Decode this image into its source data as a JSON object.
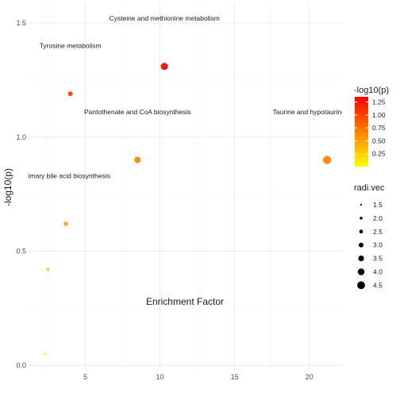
{
  "chart_data": {
    "type": "scatter",
    "xlabel": "Enrichment Factor",
    "ylabel": "-log10(p)",
    "xlim": [
      1.2,
      22.2
    ],
    "ylim": [
      -0.02,
      1.58
    ],
    "x_ticks": [
      5,
      10,
      15,
      20
    ],
    "y_ticks": [
      0.0,
      0.5,
      1.0,
      1.5
    ],
    "y_tick_labels": [
      "0.0",
      "0.5",
      "1.0",
      "1.5"
    ],
    "grid": true,
    "points": [
      {
        "x": 10.3,
        "y": 1.31,
        "size": 4.2,
        "color_value": 1.31,
        "color": "#f01c0c"
      },
      {
        "x": 4.0,
        "y": 1.19,
        "size": 3.0,
        "color_value": 1.19,
        "color": "#f24a16"
      },
      {
        "x": 8.5,
        "y": 0.9,
        "size": 3.8,
        "color_value": 0.9,
        "color": "#f98814"
      },
      {
        "x": 21.2,
        "y": 0.9,
        "size": 4.7,
        "color_value": 0.9,
        "color": "#f98814"
      },
      {
        "x": 3.7,
        "y": 0.62,
        "size": 2.8,
        "color_value": 0.62,
        "color": "#fba81c"
      },
      {
        "x": 2.5,
        "y": 0.42,
        "size": 2.0,
        "color_value": 0.42,
        "color": "#fcc20e"
      },
      {
        "x": 2.3,
        "y": 0.05,
        "size": 1.5,
        "color_value": 0.05,
        "color": "#ffe800"
      }
    ],
    "annotations": [
      {
        "text": "Cysteine and methionine metabolism",
        "x": 10.3,
        "y": 1.51
      },
      {
        "text": "Tyrosine metabolism",
        "x": 4.0,
        "y": 1.39
      },
      {
        "text": "Pantothenate and CoA biosynthesis",
        "x": 8.5,
        "y": 1.1
      },
      {
        "text": "Taurine and hypotaurine metabolism",
        "x": 21.2,
        "y": 1.1
      },
      {
        "text": "Primary bile acid biosynthesis",
        "x": 3.7,
        "y": 0.82
      }
    ],
    "color_legend": {
      "title": "-log10(p)",
      "min": 0.0,
      "max": 1.35,
      "low_color": "#ffff00",
      "high_color": "#ff0000",
      "breaks": [
        1.25,
        1.0,
        0.75,
        0.5,
        0.25
      ],
      "break_labels": [
        "1.25",
        "1.00",
        "0.75",
        "0.50",
        "0.25"
      ]
    },
    "size_legend": {
      "title": "radi.vec",
      "values": [
        1.5,
        2.0,
        2.5,
        3.0,
        3.5,
        4.0,
        4.5
      ],
      "labels": [
        "1.5",
        "2.0",
        "2.5",
        "3.0",
        "3.5",
        "4.0",
        "4.5"
      ]
    }
  }
}
